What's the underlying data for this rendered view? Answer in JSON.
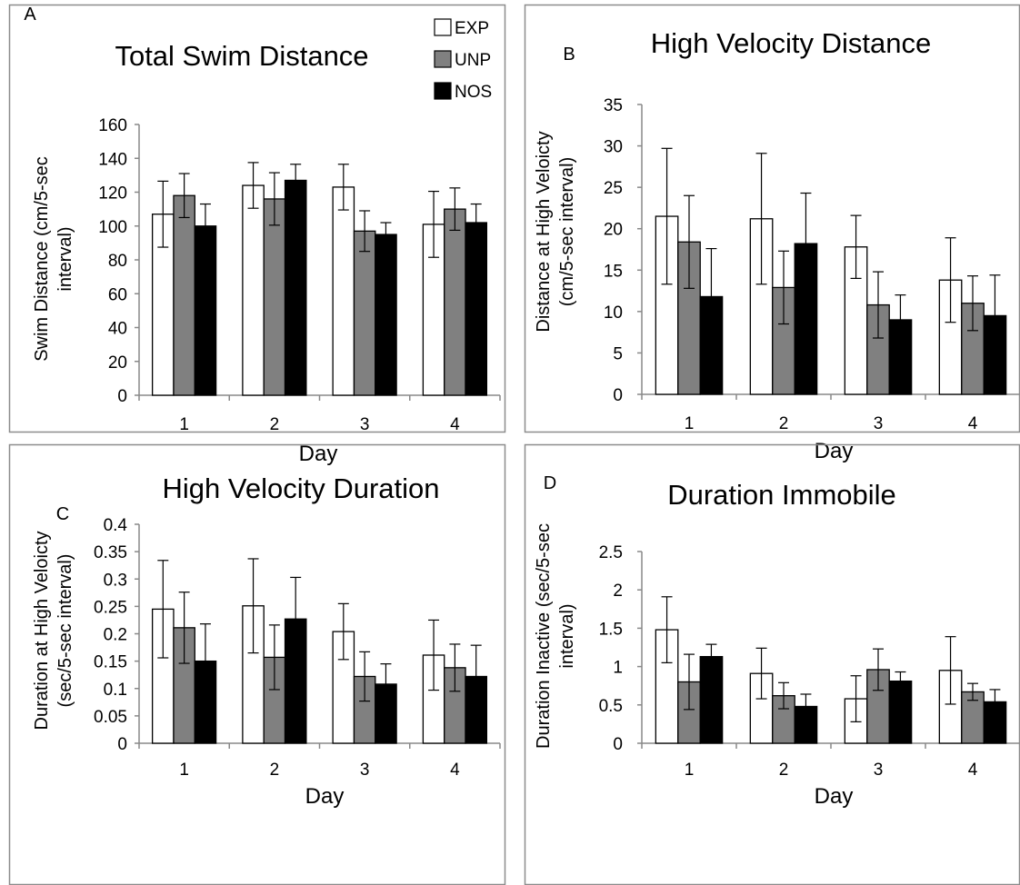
{
  "chart_data": [
    {
      "type": "bar",
      "panel_label": "A",
      "title": "Total Swim Distance",
      "xlabel": "Day",
      "ylabel": "Swim Distance (cm/5-sec interval)",
      "ylim": [
        0,
        160
      ],
      "ytick_step": 20,
      "ytick_labels": [
        "0",
        "20",
        "40",
        "60",
        "80",
        "100",
        "120",
        "140",
        "160"
      ],
      "categories": [
        "1",
        "2",
        "3",
        "4"
      ],
      "series": [
        {
          "name": "EXP",
          "color": "#ffffff",
          "values": [
            107,
            124,
            123,
            101
          ],
          "errors": [
            19.5,
            13.5,
            13.5,
            19.5
          ]
        },
        {
          "name": "UNP",
          "color": "#808080",
          "values": [
            118,
            116,
            97,
            110
          ],
          "errors": [
            13,
            15.5,
            12,
            12.5
          ]
        },
        {
          "name": "NOS",
          "color": "#000000",
          "values": [
            100,
            127,
            95,
            102
          ],
          "errors": [
            13,
            9.5,
            7,
            11
          ]
        }
      ],
      "legend": {
        "position": "top-right",
        "entries": [
          "EXP",
          "UNP",
          "NOS"
        ]
      }
    },
    {
      "type": "bar",
      "panel_label": "B",
      "title": "High Velocity Distance",
      "xlabel": "Day",
      "ylabel": "Distance at High Veloicty (cm/5-sec interval)",
      "ylim": [
        0,
        35
      ],
      "ytick_step": 5,
      "ytick_labels": [
        "0",
        "5",
        "10",
        "15",
        "20",
        "25",
        "30",
        "35"
      ],
      "categories": [
        "1",
        "2",
        "3",
        "4"
      ],
      "series": [
        {
          "name": "EXP",
          "color": "#ffffff",
          "values": [
            21.5,
            21.2,
            17.8,
            13.8
          ],
          "errors": [
            8.2,
            7.9,
            3.8,
            5.1
          ]
        },
        {
          "name": "UNP",
          "color": "#808080",
          "values": [
            18.4,
            12.9,
            10.8,
            11.0
          ],
          "errors": [
            5.6,
            4.4,
            4.0,
            3.3
          ]
        },
        {
          "name": "NOS",
          "color": "#000000",
          "values": [
            11.8,
            18.2,
            9.0,
            9.5
          ],
          "errors": [
            5.8,
            6.1,
            3.0,
            4.9
          ]
        }
      ]
    },
    {
      "type": "bar",
      "panel_label": "C",
      "title": "High Velocity Duration",
      "xlabel": "Day",
      "ylabel": "Duration at High Veloicty (sec/5-sec interval)",
      "ylim": [
        0,
        0.4
      ],
      "ytick_step": 0.05,
      "ytick_labels": [
        "0",
        "0.05",
        "0.1",
        "0.15",
        "0.2",
        "0.25",
        "0.3",
        "0.35",
        "0.4"
      ],
      "categories": [
        "1",
        "2",
        "3",
        "4"
      ],
      "series": [
        {
          "name": "EXP",
          "color": "#ffffff",
          "values": [
            0.245,
            0.251,
            0.204,
            0.161
          ],
          "errors": [
            0.089,
            0.086,
            0.051,
            0.064
          ]
        },
        {
          "name": "UNP",
          "color": "#808080",
          "values": [
            0.211,
            0.157,
            0.122,
            0.138
          ],
          "errors": [
            0.065,
            0.059,
            0.045,
            0.043
          ]
        },
        {
          "name": "NOS",
          "color": "#000000",
          "values": [
            0.15,
            0.227,
            0.108,
            0.122
          ],
          "errors": [
            0.068,
            0.076,
            0.037,
            0.057
          ]
        }
      ]
    },
    {
      "type": "bar",
      "panel_label": "D",
      "title": "Duration Immobile",
      "xlabel": "Day",
      "ylabel": "Duration Inactive (sec/5-sec interval)",
      "ylim": [
        0,
        2.5
      ],
      "ytick_step": 0.5,
      "ytick_labels": [
        "0",
        "0.5",
        "1",
        "1.5",
        "2",
        "2.5"
      ],
      "categories": [
        "1",
        "2",
        "3",
        "4"
      ],
      "series": [
        {
          "name": "EXP",
          "color": "#ffffff",
          "values": [
            1.48,
            0.91,
            0.58,
            0.95
          ],
          "errors": [
            0.43,
            0.33,
            0.3,
            0.44
          ]
        },
        {
          "name": "UNP",
          "color": "#808080",
          "values": [
            0.8,
            0.62,
            0.96,
            0.67
          ],
          "errors": [
            0.36,
            0.17,
            0.27,
            0.11
          ]
        },
        {
          "name": "NOS",
          "color": "#000000",
          "values": [
            1.13,
            0.48,
            0.81,
            0.54
          ],
          "errors": [
            0.16,
            0.16,
            0.12,
            0.16
          ]
        }
      ]
    }
  ]
}
